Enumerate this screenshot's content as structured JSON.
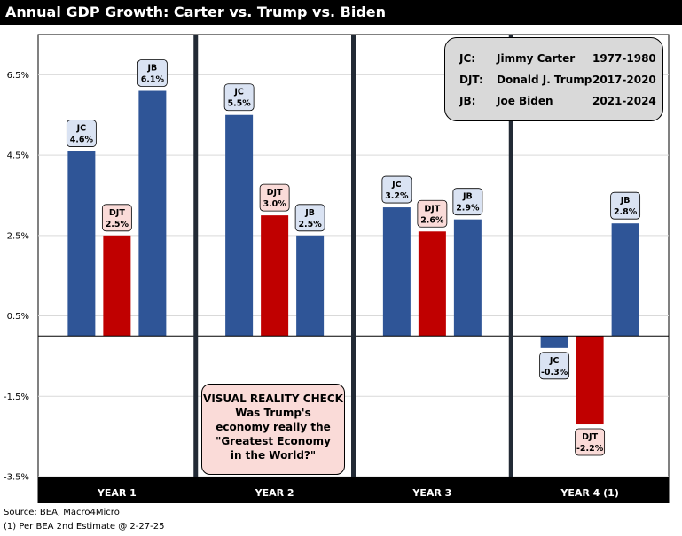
{
  "title": "Annual GDP Growth: Carter vs. Trump vs. Biden",
  "chart_data": {
    "type": "bar",
    "title": "Annual GDP Growth: Carter vs. Trump vs. Biden",
    "categories": [
      "YEAR 1",
      "YEAR 2",
      "YEAR 3",
      "YEAR 4 (1)"
    ],
    "series": [
      {
        "name": "JC",
        "color": "#2f5597",
        "values": [
          4.6,
          5.5,
          3.2,
          -0.3
        ]
      },
      {
        "name": "DJT",
        "color": "#c00000",
        "values": [
          2.5,
          3.0,
          2.6,
          -2.2
        ]
      },
      {
        "name": "JB",
        "color": "#2f5597",
        "values": [
          6.1,
          2.5,
          2.9,
          2.8
        ]
      }
    ],
    "value_labels": [
      [
        "4.6%",
        "5.5%",
        "3.2%",
        "-0.3%"
      ],
      [
        "2.5%",
        "3.0%",
        "2.6%",
        "-2.2%"
      ],
      [
        "6.1%",
        "2.5%",
        "2.9%",
        "2.8%"
      ]
    ],
    "y_ticks": [
      6.5,
      4.5,
      2.5,
      0.5,
      -1.5,
      -3.5
    ],
    "y_tick_labels": [
      "6.5%",
      "4.5%",
      "2.5%",
      "0.5%",
      "-1.5%",
      "-3.5%"
    ],
    "ylim": [
      -3.5,
      7.5
    ],
    "grid": true,
    "label_fill": {
      "JC": "#dae3f3",
      "DJT": "#fadbd8",
      "JB": "#dae3f3"
    }
  },
  "legend": {
    "rows": [
      {
        "abbr": "JC:",
        "name": "Jimmy Carter",
        "years": "1977-1980"
      },
      {
        "abbr": "DJT:",
        "name": "Donald J. Trump",
        "years": "2017-2020"
      },
      {
        "abbr": "JB:",
        "name": "Joe Biden",
        "years": "2021-2024"
      }
    ]
  },
  "reality_check": {
    "lines": [
      "VISUAL REALITY CHECK",
      "Was Trump's",
      "economy really the",
      "\"Greatest Economy",
      "in the World?\""
    ]
  },
  "source": "Source: BEA, Macro4Micro",
  "footnote": "(1) Per BEA 2nd Estimate @ 2-27-25",
  "colors": {
    "carter_biden": "#2f5597",
    "trump": "#c00000",
    "divider": "#222a35"
  }
}
